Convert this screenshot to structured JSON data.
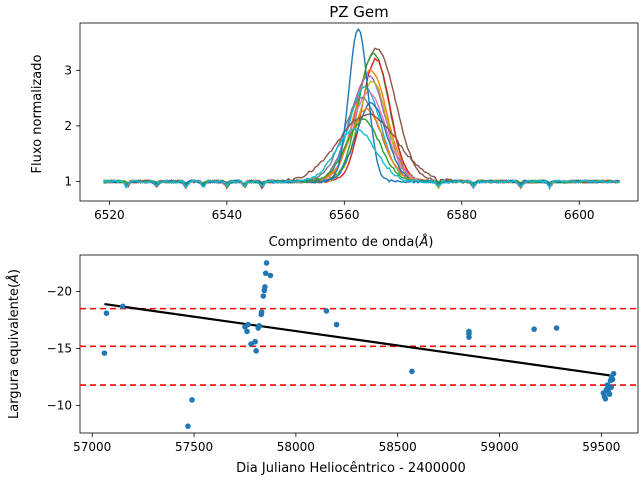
{
  "chart_data": [
    {
      "type": "line",
      "title": "PZ Gem",
      "xlabel": "Comprimento de onda($\\AA$)",
      "ylabel": "Fluxo normalizado",
      "xlim": [
        6515,
        6610
      ],
      "ylim": [
        0.65,
        3.85
      ],
      "xticks": [
        6520,
        6540,
        6560,
        6580,
        6600
      ],
      "yticks": [
        1,
        2,
        3
      ],
      "x_range": [
        6519,
        6607
      ],
      "series_profiles": [
        {
          "center": 6565.5,
          "peak": 3.4,
          "width": 3.2,
          "color": "#8c564b"
        },
        {
          "center": 6565.0,
          "peak": 3.3,
          "width": 2.6,
          "color": "#2ca02c"
        },
        {
          "center": 6565.4,
          "peak": 3.2,
          "width": 2.4,
          "color": "#d62728"
        },
        {
          "center": 6564.5,
          "peak": 3.0,
          "width": 2.8,
          "color": "#ff7f0e"
        },
        {
          "center": 6564.0,
          "peak": 2.9,
          "width": 3.0,
          "color": "#9467bd"
        },
        {
          "center": 6564.8,
          "peak": 2.8,
          "width": 2.5,
          "color": "#bcbd22"
        },
        {
          "center": 6563.5,
          "peak": 2.7,
          "width": 2.7,
          "color": "#17becf"
        },
        {
          "center": 6564.2,
          "peak": 2.6,
          "width": 2.9,
          "color": "#e377c2"
        },
        {
          "center": 6563.0,
          "peak": 2.5,
          "width": 3.1,
          "color": "#7f7f7f"
        },
        {
          "center": 6564.6,
          "peak": 2.4,
          "width": 2.6,
          "color": "#1f77b4"
        },
        {
          "center": 6563.8,
          "peak": 2.3,
          "width": 2.8,
          "color": "#ff7f0e"
        },
        {
          "center": 6564.0,
          "peak": 2.2,
          "width": 5.0,
          "color": "#8c564b"
        },
        {
          "center": 6563.2,
          "peak": 2.1,
          "width": 2.9,
          "color": "#2ca02c"
        },
        {
          "center": 6562.4,
          "peak": 3.75,
          "width": 1.6,
          "color": "#1f77b4"
        },
        {
          "center": 6562.0,
          "peak": 1.95,
          "width": 3.3,
          "color": "#17becf"
        }
      ]
    },
    {
      "type": "scatter",
      "xlabel": "Dia Juliano Heliocêntrico - 2400000",
      "ylabel": "Largura equivalente($\\AA$)",
      "xlim": [
        56940,
        59680
      ],
      "ylim": [
        -7.6,
        -23.2
      ],
      "y_inverted": true,
      "xticks": [
        57000,
        57500,
        58000,
        58500,
        59000,
        59500
      ],
      "yticks": [
        -20,
        -15,
        -10
      ],
      "points": [
        [
          57060,
          -14.6
        ],
        [
          57070,
          -18.1
        ],
        [
          57150,
          -18.7
        ],
        [
          57470,
          -8.2
        ],
        [
          57490,
          -10.5
        ],
        [
          57750,
          -16.9
        ],
        [
          57760,
          -16.5
        ],
        [
          57765,
          -17.1
        ],
        [
          57780,
          -15.4
        ],
        [
          57800,
          -15.6
        ],
        [
          57805,
          -14.8
        ],
        [
          57815,
          -16.8
        ],
        [
          57820,
          -17.0
        ],
        [
          57830,
          -18.0
        ],
        [
          57832,
          -18.2
        ],
        [
          57840,
          -19.6
        ],
        [
          57845,
          -20.1
        ],
        [
          57848,
          -20.4
        ],
        [
          57852,
          -21.6
        ],
        [
          57856,
          -22.5
        ],
        [
          57875,
          -21.4
        ],
        [
          58150,
          -18.3
        ],
        [
          58200,
          -17.1
        ],
        [
          58570,
          -13.0
        ],
        [
          58850,
          -16.0
        ],
        [
          58850,
          -16.3
        ],
        [
          58850,
          -16.5
        ],
        [
          59170,
          -16.7
        ],
        [
          59280,
          -16.8
        ],
        [
          59510,
          -11.1
        ],
        [
          59515,
          -10.8
        ],
        [
          59520,
          -10.6
        ],
        [
          59525,
          -11.4
        ],
        [
          59530,
          -11.8
        ],
        [
          59535,
          -11.2
        ],
        [
          59540,
          -11.0
        ],
        [
          59545,
          -12.2
        ],
        [
          59548,
          -11.6
        ],
        [
          59550,
          -12.5
        ],
        [
          59555,
          -12.3
        ],
        [
          59560,
          -12.8
        ]
      ],
      "trend_line": {
        "x": [
          57060,
          59560
        ],
        "y": [
          -18.9,
          -12.6
        ],
        "color": "#000000"
      },
      "hlines": [
        {
          "y": -18.5,
          "color": "#ff0000",
          "style": "dashed"
        },
        {
          "y": -15.2,
          "color": "#ff0000",
          "style": "dashed"
        },
        {
          "y": -11.8,
          "color": "#ff0000",
          "style": "dashed"
        }
      ],
      "point_color": "#1f77b4"
    }
  ]
}
